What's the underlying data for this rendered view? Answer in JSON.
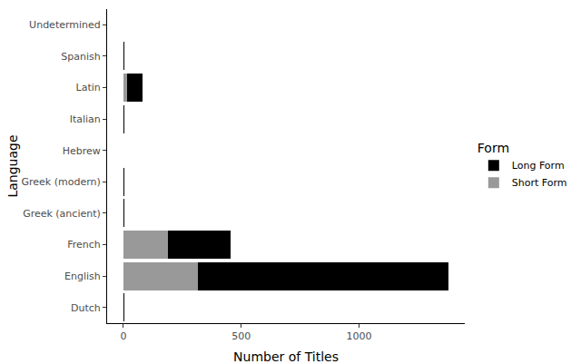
{
  "chart_data": {
    "type": "bar",
    "orientation": "horizontal",
    "stacked": true,
    "categories": [
      "Dutch",
      "English",
      "French",
      "Greek (ancient)",
      "Greek (modern)",
      "Hebrew",
      "Italian",
      "Latin",
      "Spanish",
      "Undetermined"
    ],
    "series": [
      {
        "name": "Short Form",
        "color": "#999999",
        "values": [
          2,
          315,
          190,
          1,
          2,
          0,
          1,
          15,
          2,
          1
        ]
      },
      {
        "name": "Long Form",
        "color": "#000000",
        "values": [
          3,
          1065,
          265,
          4,
          1,
          1,
          4,
          67,
          1,
          0
        ]
      }
    ],
    "x_label": "Number of Titles",
    "y_label": "Language",
    "legend_title": "Form",
    "xlim": [
      -69,
      1449
    ],
    "xticks": [
      0,
      500,
      1000
    ],
    "grid": false,
    "legend": "right"
  }
}
